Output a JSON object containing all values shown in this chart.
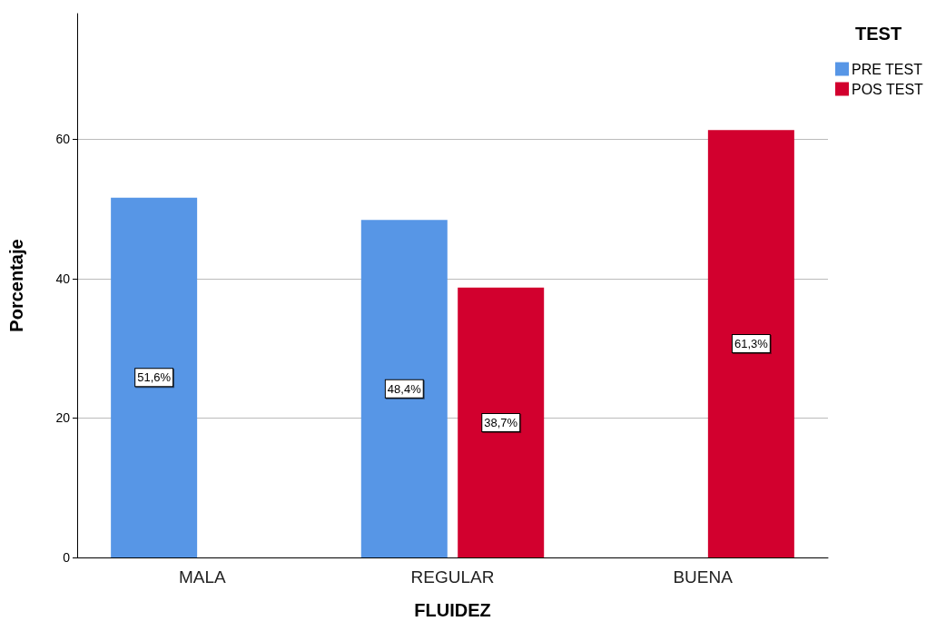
{
  "chart_data": {
    "type": "bar",
    "xlabel": "FLUIDEZ",
    "ylabel": "Porcentaje",
    "legend_title": "TEST",
    "categories": [
      "MALA",
      "REGULAR",
      "BUENA"
    ],
    "series": [
      {
        "name": "PRE TEST",
        "color": "#5796e6",
        "values": [
          51.6,
          48.4,
          null
        ],
        "value_labels": [
          "51,6%",
          "48,4%",
          null
        ]
      },
      {
        "name": "POS TEST",
        "color": "#d2002e",
        "values": [
          null,
          38.7,
          61.3
        ],
        "value_labels": [
          null,
          "38,7%",
          "61,3%"
        ]
      }
    ],
    "ylim": [
      0,
      78
    ],
    "yticks": [
      0,
      20,
      40,
      60
    ],
    "grid": "y",
    "legend": "top right"
  }
}
